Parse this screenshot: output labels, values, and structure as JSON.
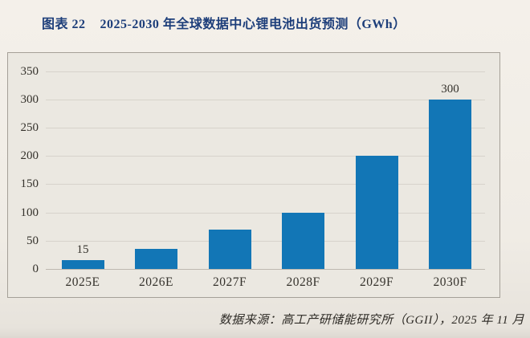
{
  "header": {
    "figure_label": "图表 22",
    "title": "2025-2030 年全球数据中心锂电池出货预测（GWh）"
  },
  "chart_data": {
    "type": "bar",
    "title": "2025-2030 年全球数据中心锂电池出货预测（GWh）",
    "categories": [
      "2025E",
      "2026E",
      "2027F",
      "2028F",
      "2029F",
      "2030F"
    ],
    "values": [
      15,
      35,
      70,
      100,
      200,
      300
    ],
    "bar_labels": [
      "15",
      "",
      "",
      "",
      "",
      "300"
    ],
    "xlabel": "",
    "ylabel": "",
    "ylim": [
      0,
      350
    ],
    "yticks": [
      0,
      50,
      100,
      150,
      200,
      250,
      300,
      350
    ],
    "grid": true,
    "legend": false,
    "bar_color": "#1276b6"
  },
  "footer": {
    "source": "数据来源：高工产研储能研究所（GGII），2025 年 11 月"
  }
}
